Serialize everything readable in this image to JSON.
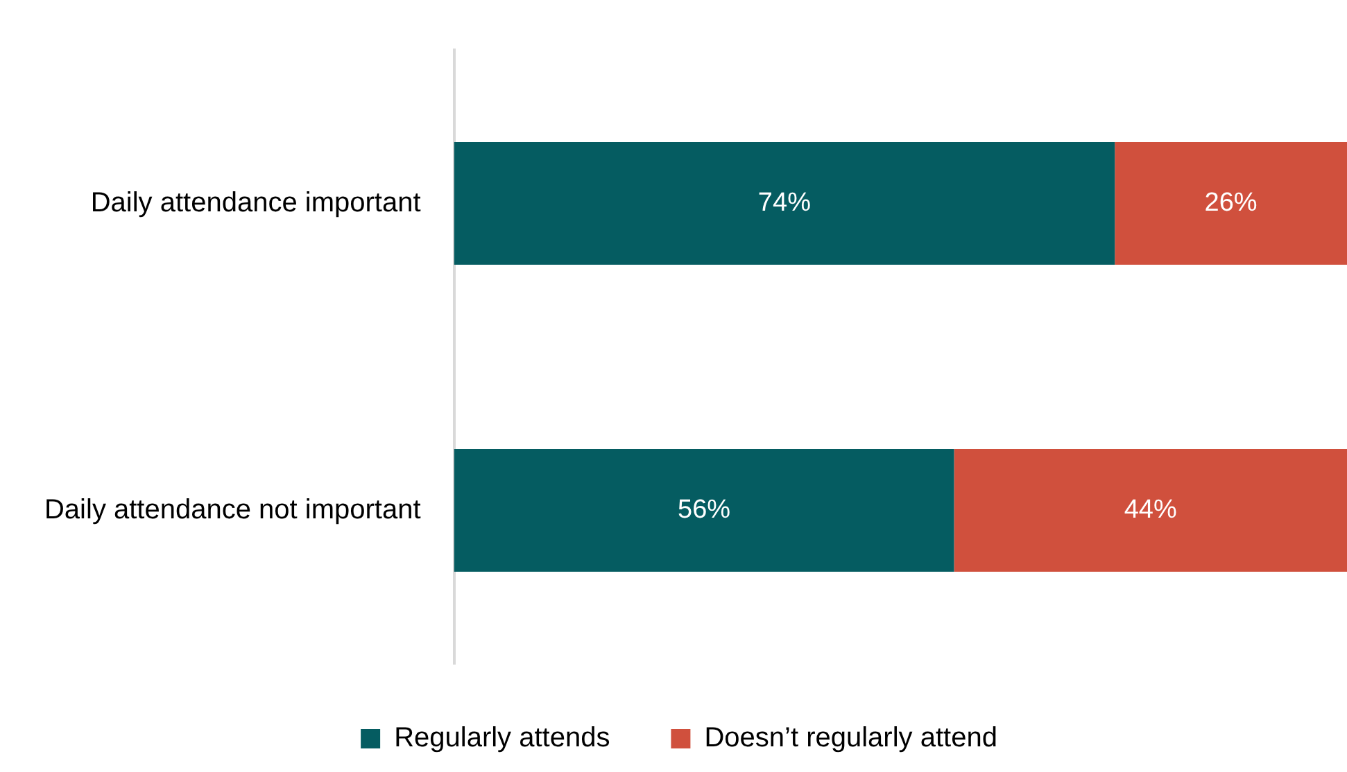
{
  "chart_data": {
    "type": "bar",
    "orientation": "horizontal",
    "stacked": true,
    "categories": [
      "Daily attendance important",
      "Daily attendance not important"
    ],
    "series": [
      {
        "name": "Regularly attends",
        "color": "#055c61",
        "values": [
          74,
          56
        ],
        "value_labels": [
          "74%",
          "56%"
        ]
      },
      {
        "name": "Doesn’t regularly attend",
        "color": "#d0503d",
        "values": [
          26,
          44
        ],
        "value_labels": [
          "26%",
          "44%"
        ]
      }
    ],
    "xlim": [
      0,
      100
    ],
    "tick_labels": "y",
    "legend": "bottom"
  }
}
